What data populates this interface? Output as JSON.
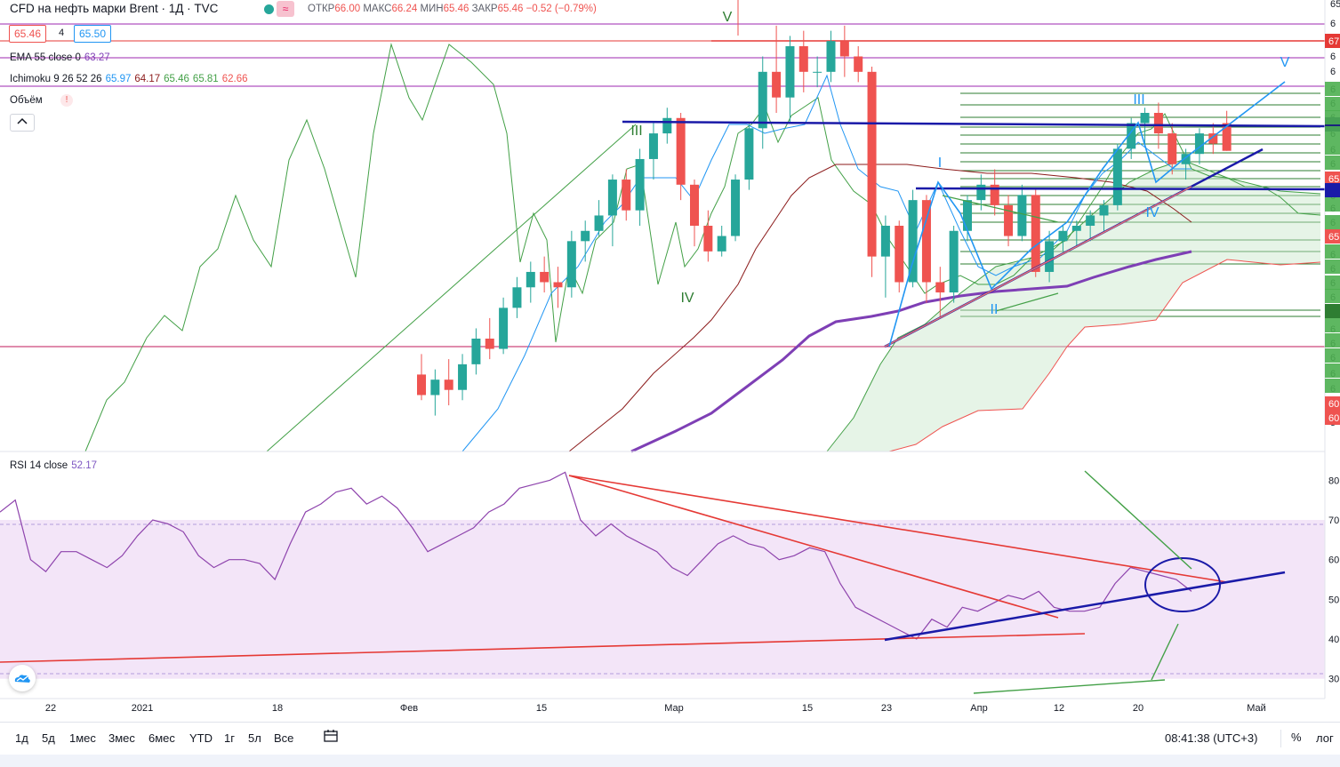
{
  "header": {
    "symbol": "CFD на нефть марки Brent · 1Д · TVC",
    "open_label": "ОТКР",
    "open": "66.00",
    "high_label": "МАКС",
    "high": "66.24",
    "low_label": "МИН",
    "low": "65.46",
    "close_label": "ЗАКР",
    "close": "65.46",
    "change": "−0.52 (−0.79%)",
    "wave_icon": "≈"
  },
  "order": {
    "sell": "65.46",
    "qty": "4",
    "buy": "65.50"
  },
  "indicators": {
    "ema": {
      "name": "EMA 55 close 0",
      "value": "63.27"
    },
    "ichimoku": {
      "name": "Ichimoku 9 26 52 26",
      "values": [
        "65.97",
        "64.17",
        "65.46",
        "65.81",
        "62.66"
      ]
    },
    "volume": {
      "name": "Объём",
      "warning": "!"
    },
    "rsi": {
      "name": "RSI 14 close",
      "value": "52.17"
    }
  },
  "colors": {
    "up": "#26a69a",
    "down": "#ef5350",
    "ema": "#7e3fb5",
    "tenkan": "#2196f3",
    "kijun": "#8b1a1a",
    "span": "#4caf50",
    "rsi": "#8e44ad",
    "rsiband": "#f3e5f8"
  },
  "chart_data": [
    {
      "type": "candlestick",
      "x_ticks": [
        "22",
        "2021",
        "18",
        "Фев",
        "15",
        "Мар",
        "15",
        "23",
        "Апр",
        "12",
        "20",
        "Май"
      ],
      "price_scale_labels_visible": [
        "67",
        "65",
        "64",
        "60",
        "60"
      ],
      "wave_labels": [
        "V",
        "III",
        "IV",
        "I",
        "II",
        "III",
        "IV",
        "V"
      ],
      "ohlc_approx": [
        [
          61.1,
          61.5,
          60.6,
          60.7
        ],
        [
          60.7,
          61.2,
          60.3,
          61.0
        ],
        [
          61.0,
          61.4,
          60.5,
          60.8
        ],
        [
          60.8,
          61.5,
          60.6,
          61.3
        ],
        [
          61.3,
          62.0,
          61.1,
          61.8
        ],
        [
          61.8,
          62.2,
          61.4,
          61.6
        ],
        [
          61.6,
          62.6,
          61.5,
          62.4
        ],
        [
          62.4,
          63.0,
          62.2,
          62.8
        ],
        [
          62.8,
          63.3,
          62.5,
          63.1
        ],
        [
          63.1,
          63.4,
          62.7,
          62.9
        ],
        [
          62.9,
          63.2,
          62.4,
          62.8
        ],
        [
          62.8,
          63.9,
          62.6,
          63.7
        ],
        [
          63.7,
          64.1,
          63.3,
          63.9
        ],
        [
          63.9,
          64.5,
          63.8,
          64.2
        ],
        [
          64.2,
          65.0,
          63.6,
          64.9
        ],
        [
          64.9,
          65.1,
          64.1,
          64.3
        ],
        [
          64.3,
          65.5,
          64.0,
          65.3
        ],
        [
          65.3,
          66.0,
          64.9,
          65.8
        ],
        [
          65.8,
          66.3,
          65.6,
          66.1
        ],
        [
          66.1,
          66.2,
          64.5,
          64.8
        ],
        [
          64.8,
          64.9,
          63.6,
          64.0
        ],
        [
          64.0,
          64.3,
          63.3,
          63.5
        ],
        [
          63.5,
          64.0,
          63.4,
          63.8
        ],
        [
          63.8,
          65.0,
          63.7,
          64.9
        ],
        [
          64.9,
          66.0,
          64.7,
          65.9
        ],
        [
          65.9,
          67.3,
          65.5,
          67.0
        ],
        [
          67.0,
          67.9,
          66.2,
          66.5
        ],
        [
          66.5,
          67.7,
          66.0,
          67.5
        ],
        [
          67.5,
          67.8,
          66.6,
          67.0
        ],
        [
          67.0,
          67.3,
          66.7,
          67.0
        ],
        [
          67.0,
          67.8,
          66.8,
          67.6
        ],
        [
          67.6,
          67.9,
          66.9,
          67.3
        ],
        [
          67.3,
          67.5,
          66.8,
          67.0
        ],
        [
          67.0,
          67.1,
          63.0,
          63.4
        ],
        [
          63.4,
          64.2,
          62.6,
          64.0
        ],
        [
          64.0,
          64.1,
          62.7,
          62.9
        ],
        [
          62.9,
          64.7,
          62.8,
          64.5
        ],
        [
          64.5,
          64.6,
          62.5,
          62.9
        ],
        [
          62.9,
          63.2,
          62.2,
          62.7
        ],
        [
          62.7,
          64.0,
          62.5,
          63.9
        ],
        [
          63.9,
          64.6,
          63.7,
          64.5
        ],
        [
          64.5,
          65.0,
          64.3,
          64.8
        ],
        [
          64.8,
          65.1,
          64.2,
          64.4
        ],
        [
          64.4,
          64.6,
          63.6,
          63.8
        ],
        [
          63.8,
          64.8,
          63.7,
          64.6
        ],
        [
          64.6,
          64.7,
          63.0,
          63.1
        ],
        [
          63.1,
          63.9,
          62.9,
          63.7
        ],
        [
          63.7,
          64.0,
          63.5,
          63.9
        ],
        [
          63.9,
          64.1,
          63.6,
          64.0
        ],
        [
          64.0,
          64.3,
          63.7,
          64.2
        ],
        [
          64.2,
          64.5,
          63.9,
          64.4
        ],
        [
          64.4,
          65.6,
          64.3,
          65.5
        ],
        [
          65.5,
          66.1,
          65.3,
          66.0
        ],
        [
          66.0,
          66.3,
          65.6,
          66.2
        ],
        [
          66.2,
          66.4,
          65.5,
          65.8
        ],
        [
          65.8,
          66.0,
          65.0,
          65.2
        ],
        [
          65.2,
          65.5,
          64.9,
          65.4
        ],
        [
          65.4,
          65.9,
          65.2,
          65.8
        ],
        [
          65.8,
          66.0,
          65.4,
          65.6
        ],
        [
          66.0,
          66.24,
          65.46,
          65.46
        ]
      ]
    },
    {
      "type": "line",
      "name": "RSI 14 close",
      "y_ticks": [
        "80",
        "70",
        "60",
        "50",
        "40",
        "30"
      ],
      "ylim": [
        25,
        85
      ],
      "band": [
        30,
        70
      ],
      "values": [
        72,
        75,
        60,
        57,
        62,
        62,
        60,
        58,
        61,
        66,
        70,
        69,
        67,
        61,
        58,
        60,
        60,
        59,
        55,
        64,
        72,
        74,
        77,
        78,
        74,
        76,
        73,
        68,
        62,
        64,
        66,
        68,
        72,
        74,
        78,
        79,
        80,
        82,
        70,
        66,
        69,
        66,
        64,
        62,
        58,
        56,
        60,
        64,
        66,
        64,
        63,
        60,
        61,
        63,
        62,
        54,
        48,
        46,
        44,
        42,
        40,
        45,
        43,
        48,
        47,
        49,
        51,
        50,
        52,
        48,
        47,
        47,
        48,
        54,
        58,
        57,
        56,
        55,
        52
      ]
    }
  ]
}
